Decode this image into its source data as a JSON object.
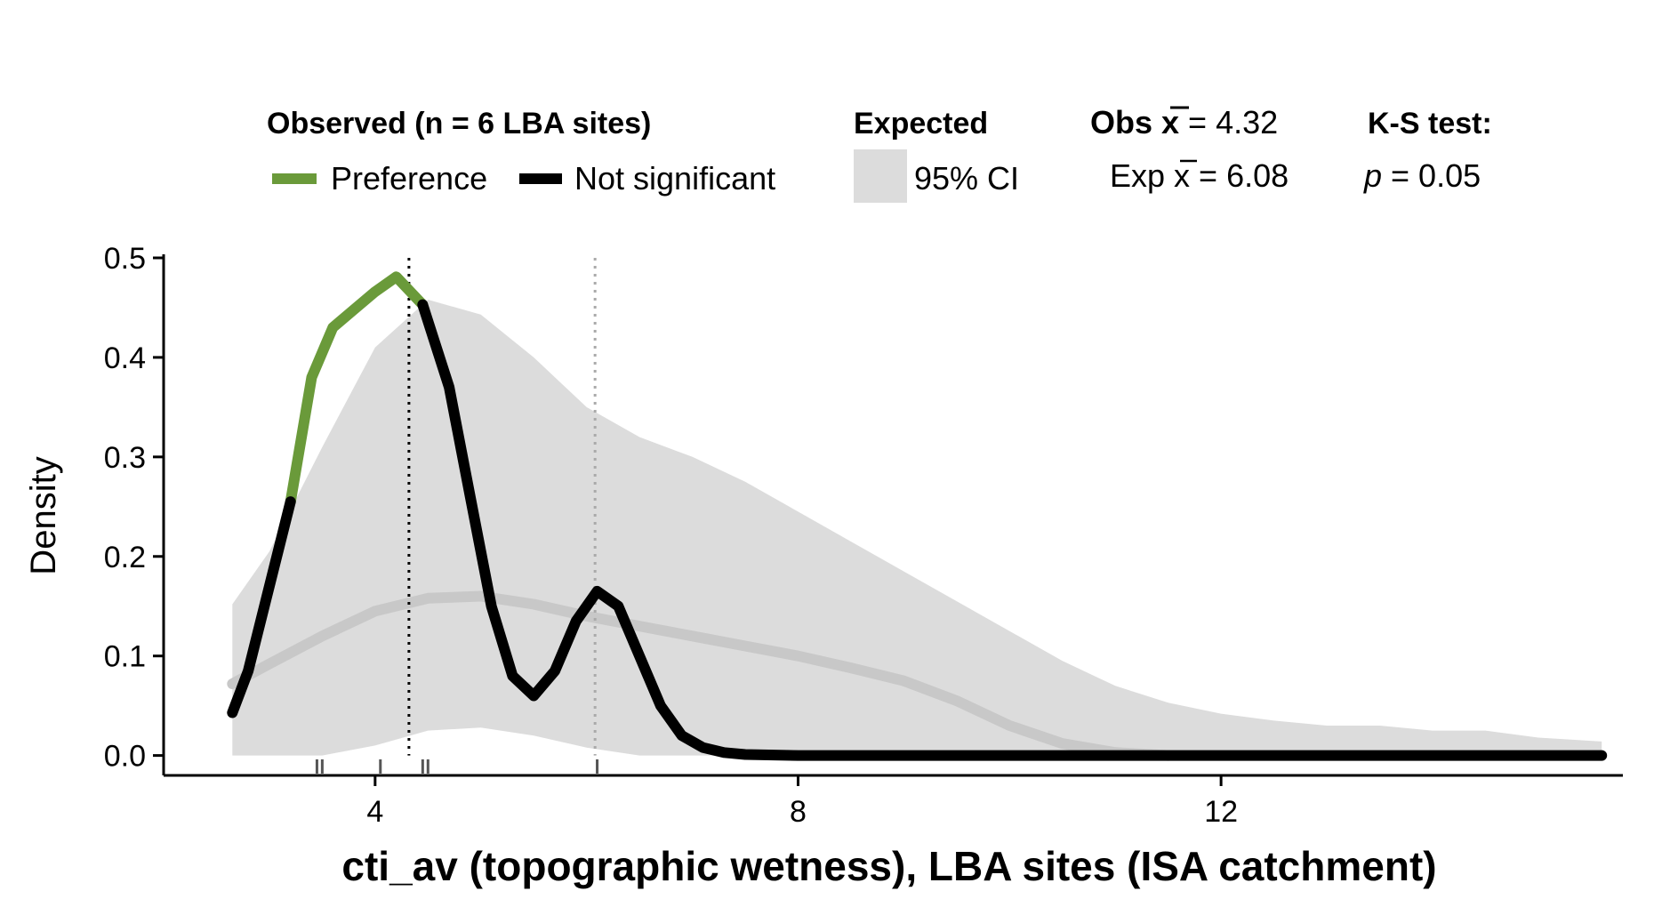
{
  "legend": {
    "observed_title": "Observed (n = 6 LBA sites)",
    "preference_label": "Preference",
    "not_significant_label": "Not significant",
    "expected_title": "Expected",
    "ci_label": "95% CI",
    "obs_mean_prefix": "Obs ",
    "obs_mean_value": " = 4.32",
    "exp_mean_prefix": "Exp ",
    "exp_mean_value": " = 6.08",
    "mean_symbol": "x",
    "ks_title": "K-S test:",
    "p_symbol": "p",
    "p_value": " = 0.05"
  },
  "colors": {
    "preference": "#6a9a3a",
    "not_significant": "#000000",
    "ci_band": "#dcdcdc",
    "expected_line": "#c8c8c8",
    "obs_mean_line": "#000000",
    "exp_mean_line": "#aaaaaa"
  },
  "chart_data": {
    "type": "line",
    "xlabel": "cti_av (topographic wetness), LBA sites (ISA catchment)",
    "ylabel": "Density",
    "xlim": [
      2.0,
      15.8
    ],
    "ylim": [
      -0.02,
      0.5
    ],
    "xticks": [
      4,
      8,
      12
    ],
    "yticks": [
      0.0,
      0.1,
      0.2,
      0.3,
      0.4,
      0.5
    ],
    "xtick_labels": [
      "4",
      "8",
      "12"
    ],
    "ytick_labels": [
      "0.0",
      "0.1",
      "0.2",
      "0.3",
      "0.4",
      "0.5"
    ],
    "observed_mean": 4.32,
    "expected_mean": 6.08,
    "rug": [
      3.45,
      3.5,
      4.05,
      4.45,
      4.5,
      6.1
    ],
    "ci_band": {
      "x": [
        2.65,
        3.0,
        3.5,
        4.0,
        4.5,
        5.0,
        5.5,
        6.0,
        6.5,
        7.0,
        7.5,
        8.0,
        8.5,
        9.0,
        9.5,
        10.0,
        10.5,
        11.0,
        11.5,
        12.0,
        12.5,
        13.0,
        13.5,
        14.0,
        14.5,
        15.0,
        15.6
      ],
      "upper": [
        0.152,
        0.205,
        0.31,
        0.41,
        0.458,
        0.443,
        0.4,
        0.35,
        0.32,
        0.3,
        0.275,
        0.245,
        0.215,
        0.185,
        0.155,
        0.125,
        0.095,
        0.07,
        0.053,
        0.042,
        0.035,
        0.03,
        0.03,
        0.025,
        0.025,
        0.018,
        0.014
      ],
      "lower": [
        0.0,
        0.0,
        0.0,
        0.01,
        0.025,
        0.028,
        0.02,
        0.008,
        0.0,
        0.0,
        0.0,
        0.0,
        0.0,
        0.0,
        0.0,
        0.0,
        0.0,
        0.0,
        0.0,
        0.0,
        0.0,
        0.0,
        0.0,
        0.0,
        0.0,
        0.0,
        0.0
      ]
    },
    "series": [
      {
        "name": "Expected",
        "x": [
          2.65,
          3.0,
          3.5,
          4.0,
          4.5,
          5.0,
          5.5,
          6.0,
          6.5,
          7.0,
          7.5,
          8.0,
          8.5,
          9.0,
          9.5,
          10.0,
          10.5,
          11.0,
          11.5
        ],
        "values": [
          0.072,
          0.092,
          0.12,
          0.145,
          0.158,
          0.16,
          0.152,
          0.14,
          0.13,
          0.12,
          0.11,
          0.1,
          0.088,
          0.075,
          0.055,
          0.03,
          0.012,
          0.003,
          0.0
        ]
      },
      {
        "name": "Preference",
        "x": [
          3.2,
          3.4,
          3.6,
          3.8,
          4.0,
          4.2,
          4.45
        ],
        "values": [
          0.255,
          0.38,
          0.43,
          0.448,
          0.466,
          0.481,
          0.453
        ]
      },
      {
        "name": "Not significant",
        "x": [
          2.65,
          2.8,
          3.0,
          3.2
        ],
        "values": [
          0.043,
          0.085,
          0.17,
          0.255
        ]
      },
      {
        "name": "Not significant",
        "x": [
          4.45,
          4.7,
          4.9,
          5.1,
          5.3,
          5.5,
          5.7,
          5.9,
          6.1,
          6.3,
          6.5,
          6.7,
          6.9,
          7.1,
          7.3,
          7.5,
          8.0,
          9.0,
          10.0,
          11.0,
          12.0,
          13.0,
          14.0,
          15.6
        ],
        "values": [
          0.453,
          0.37,
          0.26,
          0.15,
          0.08,
          0.06,
          0.085,
          0.135,
          0.165,
          0.15,
          0.1,
          0.05,
          0.02,
          0.008,
          0.003,
          0.001,
          0.0,
          0.0,
          0.0,
          0.0,
          0.0,
          0.0,
          0.0,
          0.0
        ]
      }
    ]
  }
}
